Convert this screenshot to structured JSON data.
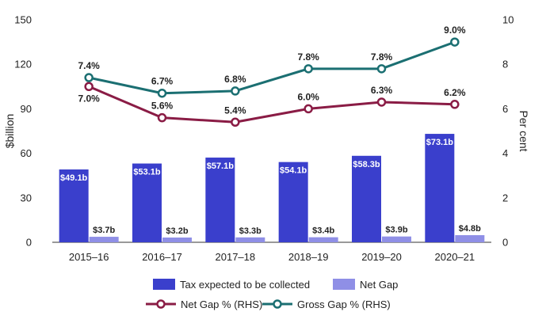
{
  "chart_data": {
    "type": "bar+line",
    "categories": [
      "2015–16",
      "2016–17",
      "2017–18",
      "2018–19",
      "2019–20",
      "2020–21"
    ],
    "ylabel": "$billion",
    "y2label": "Per cent",
    "ylim": [
      0,
      150
    ],
    "yticks": [
      0,
      30,
      60,
      90,
      120,
      150
    ],
    "y2lim": [
      0,
      10
    ],
    "y2ticks": [
      0,
      2,
      4,
      6,
      8,
      10
    ],
    "grid": false,
    "legend_position": "bottom",
    "bar_series": [
      {
        "name": "Tax expected to be collected",
        "color": "#3a3fcc",
        "values": [
          49.1,
          53.1,
          57.1,
          54.1,
          58.3,
          73.1
        ],
        "labels": [
          "$49.1b",
          "$53.1b",
          "$57.1b",
          "$54.1b",
          "$58.3b",
          "$73.1b"
        ]
      },
      {
        "name": "Net Gap",
        "color": "#8f8fe6",
        "values": [
          3.7,
          3.2,
          3.3,
          3.4,
          3.9,
          4.8
        ],
        "labels": [
          "$3.7b",
          "$3.2b",
          "$3.3b",
          "$3.4b",
          "$3.9b",
          "$4.8b"
        ]
      }
    ],
    "line_series": [
      {
        "name": "Net Gap % (RHS)",
        "color": "#8a1c45",
        "axis": "right",
        "values": [
          7.0,
          5.6,
          5.4,
          6.0,
          6.3,
          6.2
        ],
        "labels": [
          "7.0%",
          "5.6%",
          "5.4%",
          "6.0%",
          "6.3%",
          "6.2%"
        ]
      },
      {
        "name": "Gross Gap % (RHS)",
        "color": "#1b6f72",
        "axis": "right",
        "values": [
          7.4,
          6.7,
          6.8,
          7.8,
          7.8,
          9.0
        ],
        "labels": [
          "7.4%",
          "6.7%",
          "6.8%",
          "7.8%",
          "7.8%",
          "9.0%"
        ]
      }
    ]
  }
}
